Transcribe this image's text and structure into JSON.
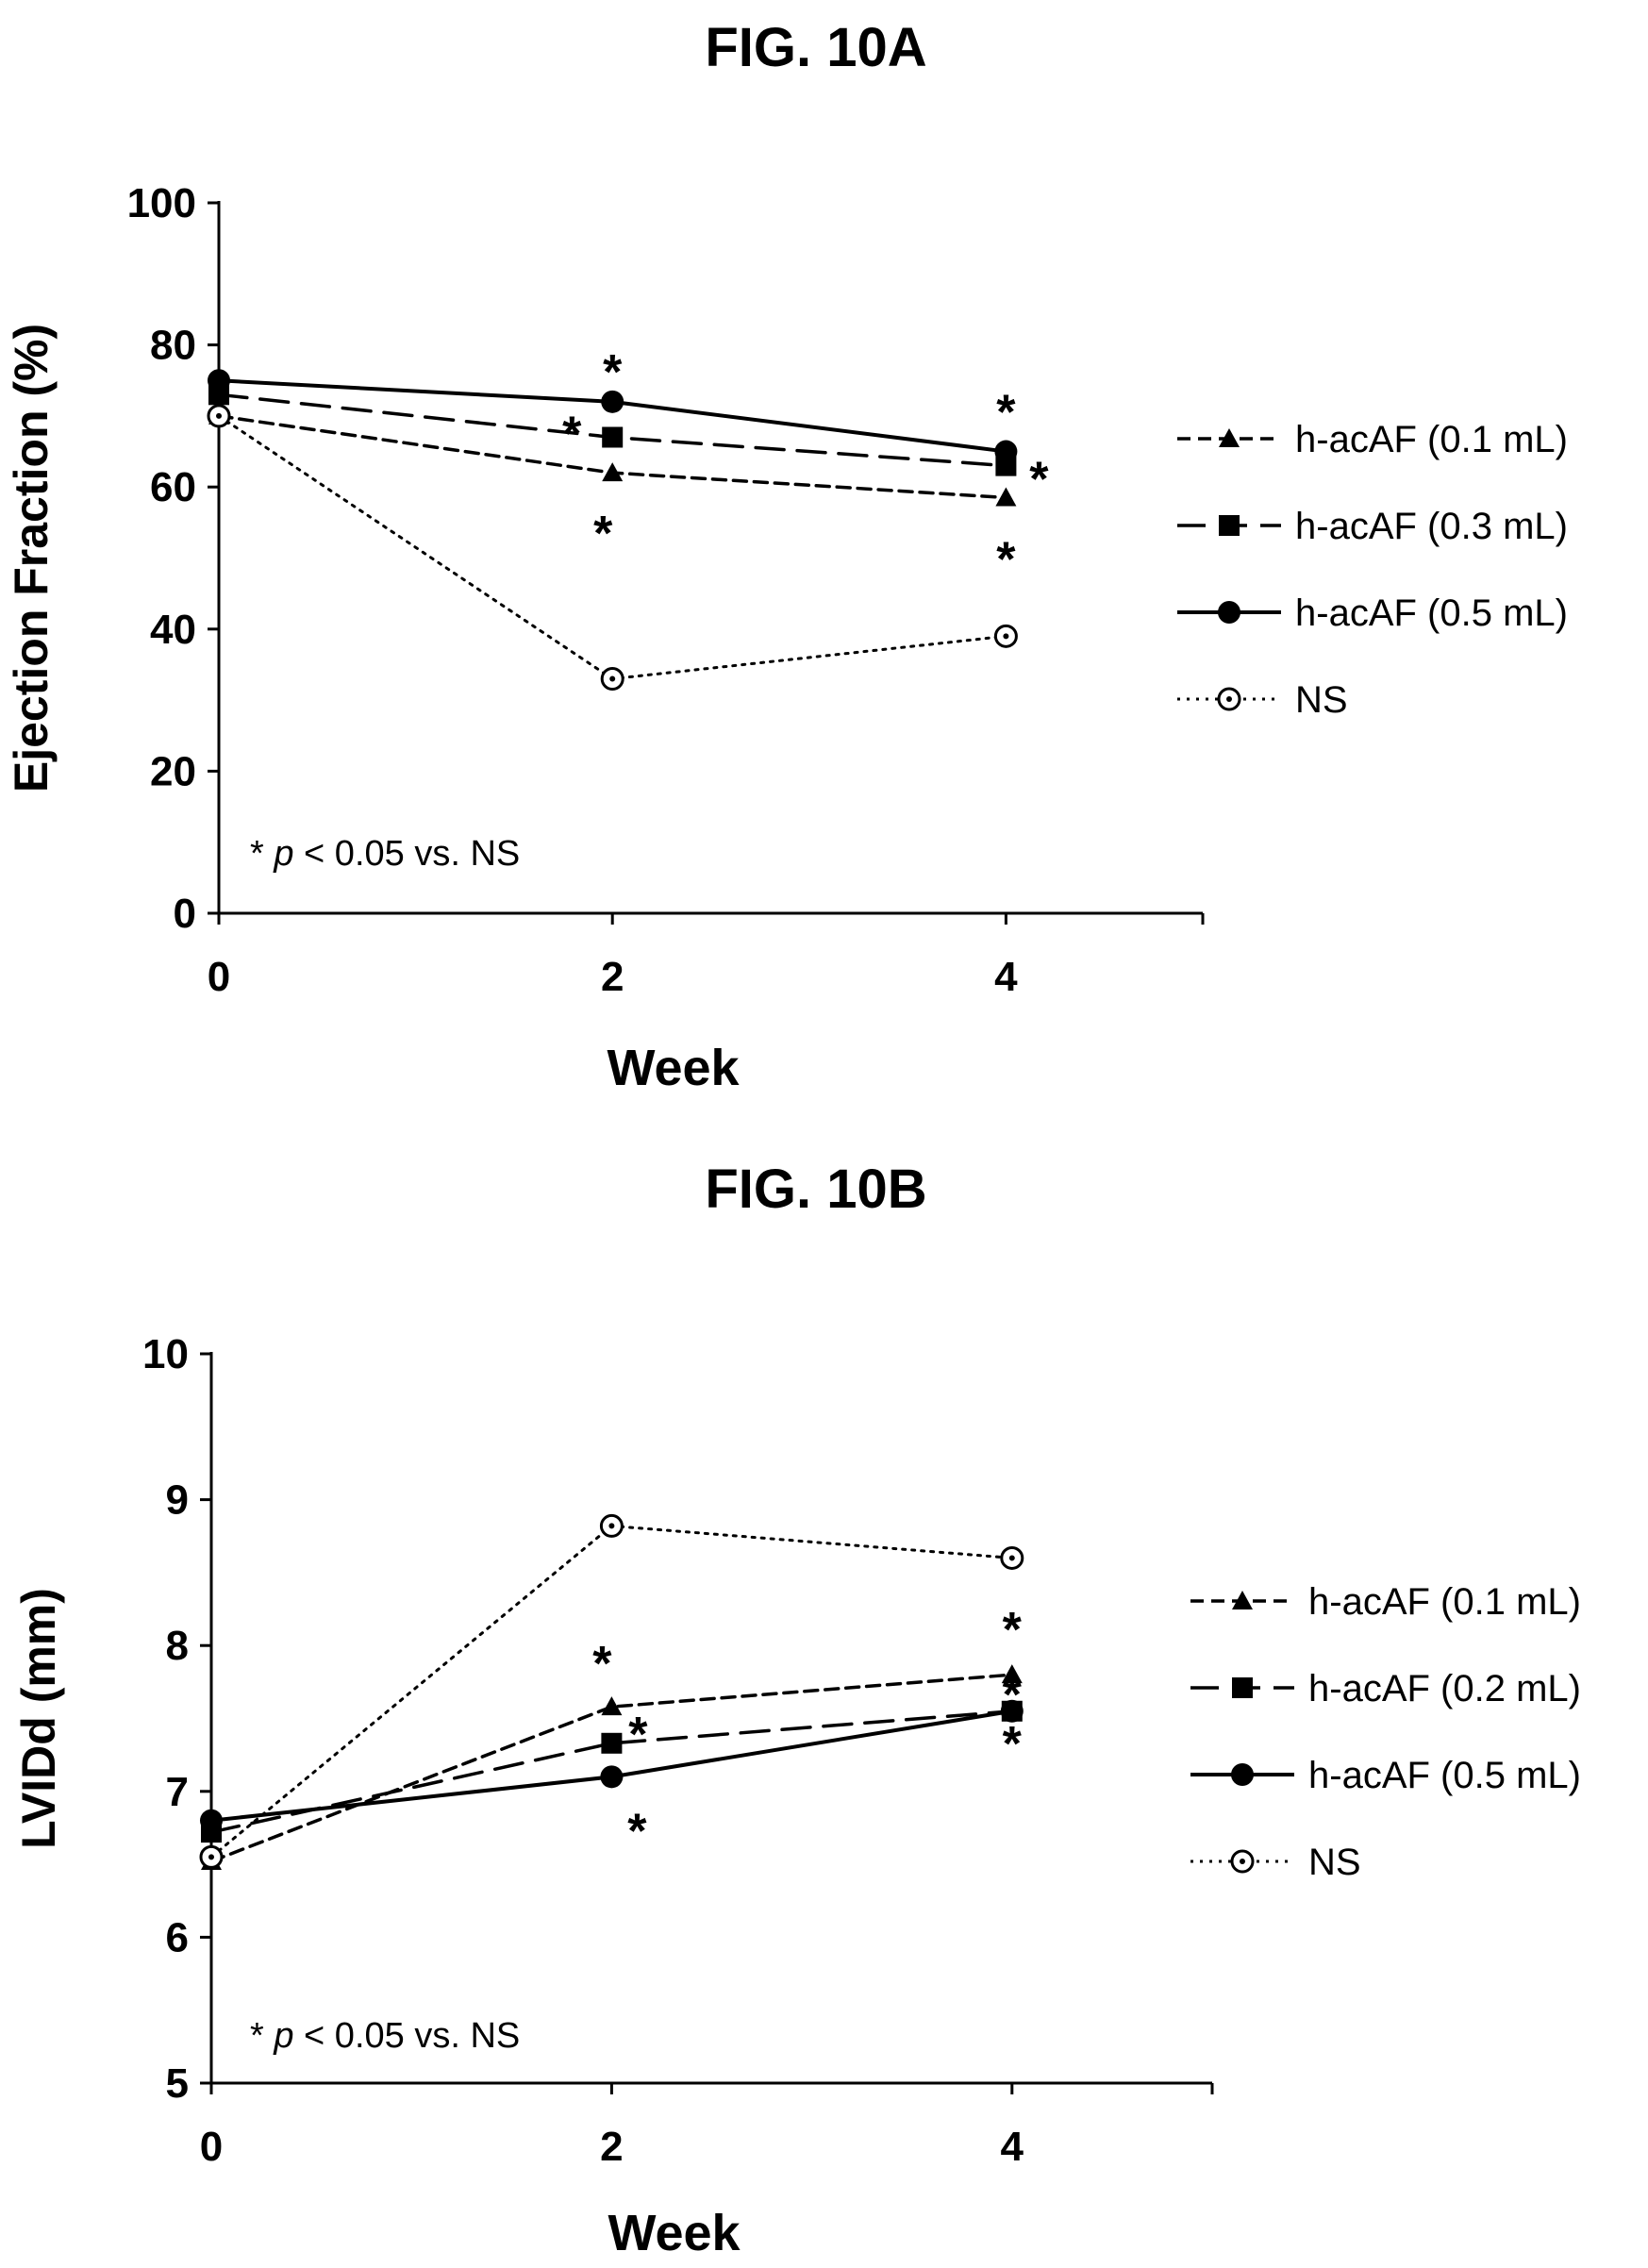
{
  "chart_data": [
    {
      "type": "line",
      "title": "FIG. 10A",
      "xlabel": "Week",
      "ylabel": "Ejection Fraction (%)",
      "x": [
        0,
        2,
        4
      ],
      "xticks": [
        "0",
        "2",
        "4"
      ],
      "xlim": [
        0,
        5
      ],
      "ylim": [
        0,
        100
      ],
      "yticks": [
        "0",
        "20",
        "40",
        "60",
        "80",
        "100"
      ],
      "grid": false,
      "legend_position": "right",
      "annotation": {
        "prefix": "* ",
        "italic": "p",
        "suffix": " < 0.05 vs. NS"
      },
      "series": [
        {
          "name": "h-acAF (0.1 mL)",
          "marker": "triangle",
          "line": "short-dash",
          "values": [
            70,
            62,
            58.5
          ],
          "significance": [
            "",
            "*",
            "*"
          ]
        },
        {
          "name": "h-acAF (0.3 mL)",
          "marker": "square",
          "line": "long-dash",
          "values": [
            73,
            67,
            63
          ],
          "significance": [
            "",
            "*",
            "*"
          ]
        },
        {
          "name": "h-acAF (0.5 mL)",
          "marker": "circle",
          "line": "solid",
          "values": [
            75,
            72,
            65
          ],
          "significance": [
            "",
            "*",
            "*"
          ]
        },
        {
          "name": "NS",
          "marker": "open-circle",
          "line": "dotted",
          "values": [
            70,
            33,
            39
          ],
          "significance": [
            "",
            "",
            ""
          ]
        }
      ]
    },
    {
      "type": "line",
      "title": "FIG. 10B",
      "xlabel": "Week",
      "ylabel": "LVIDd (mm)",
      "x": [
        0,
        2,
        4
      ],
      "xticks": [
        "0",
        "2",
        "4"
      ],
      "xlim": [
        0,
        5
      ],
      "ylim": [
        5,
        10
      ],
      "yticks": [
        "5",
        "6",
        "7",
        "8",
        "9",
        "10"
      ],
      "grid": false,
      "legend_position": "right",
      "annotation": {
        "prefix": "* ",
        "italic": "p",
        "suffix": " < 0.05 vs. NS"
      },
      "series": [
        {
          "name": "h-acAF (0.1 mL)",
          "marker": "triangle",
          "line": "short-dash",
          "values": [
            6.52,
            7.58,
            7.8
          ],
          "significance": [
            "",
            "*",
            "*"
          ]
        },
        {
          "name": "h-acAF (0.2 mL)",
          "marker": "square",
          "line": "long-dash",
          "values": [
            6.72,
            7.33,
            7.55
          ],
          "significance": [
            "",
            "*",
            "*"
          ]
        },
        {
          "name": "h-acAF (0.5 mL)",
          "marker": "circle",
          "line": "solid",
          "values": [
            6.8,
            7.1,
            7.55
          ],
          "significance": [
            "",
            "*",
            "*"
          ]
        },
        {
          "name": "NS",
          "marker": "open-circle",
          "line": "dotted",
          "values": [
            6.55,
            8.82,
            8.6
          ],
          "significance": [
            "",
            "",
            ""
          ]
        }
      ]
    }
  ]
}
